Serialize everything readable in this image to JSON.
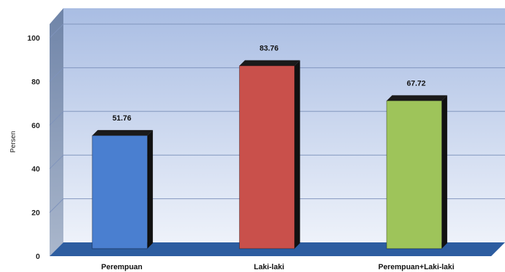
{
  "chart_data": {
    "type": "bar",
    "title": "",
    "xlabel": "",
    "ylabel": "Persen",
    "ylim": [
      0,
      100
    ],
    "yticks": [
      0,
      20,
      40,
      60,
      80,
      100
    ],
    "categories": [
      "Perempuan",
      "Laki-laki",
      "Perempuan+Laki-laki"
    ],
    "values": [
      51.76,
      83.76,
      67.72
    ],
    "value_labels": [
      "51.76",
      "83.76",
      "67.72"
    ],
    "bar_colors": [
      "#4a7fd0",
      "#c9504b",
      "#9ec45a"
    ],
    "grid": true,
    "legend": "none",
    "style": "3d-bars"
  },
  "colors": {
    "wall_top": "#a9bde3",
    "wall_bottom": "#e8edf8",
    "side_wall": "#8a9bb7",
    "floor": "#2d5da0"
  }
}
